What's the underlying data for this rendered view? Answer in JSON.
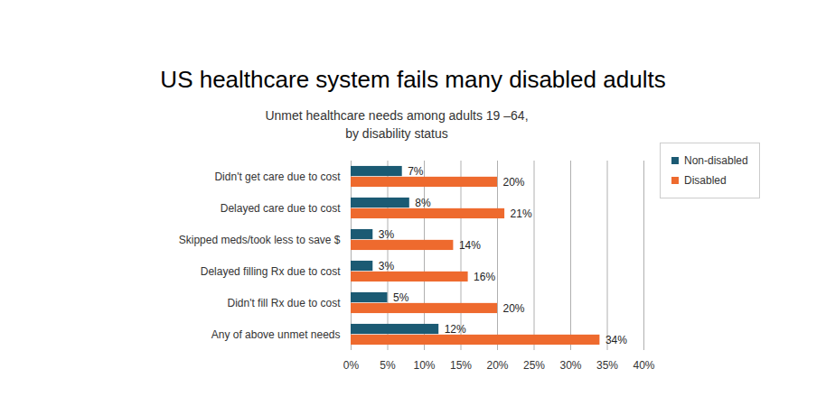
{
  "chart_data": {
    "type": "bar",
    "title": "US healthcare system fails many disabled adults",
    "subtitle": "Unmet healthcare needs among adults 19 –64,\nby disability status",
    "orientation": "horizontal",
    "categories": [
      "Didn't get care due to cost",
      "Delayed care due to cost",
      "Skipped meds/took less to save $",
      "Delayed filling Rx due to cost",
      "Didn't fill Rx due to cost",
      "Any of above unmet needs"
    ],
    "series": [
      {
        "name": "Non-disabled",
        "color": "#1b5a73",
        "values": [
          7,
          8,
          3,
          3,
          5,
          12
        ],
        "value_labels": [
          "7%",
          "8%",
          "3%",
          "3%",
          "5%",
          "12%"
        ]
      },
      {
        "name": "Disabled",
        "color": "#ee6a2e",
        "values": [
          20,
          21,
          14,
          16,
          20,
          34
        ],
        "value_labels": [
          "20%",
          "21%",
          "14%",
          "16%",
          "20%",
          "34%"
        ]
      }
    ],
    "xlim": [
      0,
      40
    ],
    "xticks": [
      {
        "value": 0,
        "label": "0%"
      },
      {
        "value": 5,
        "label": "5%"
      },
      {
        "value": 10,
        "label": "10%"
      },
      {
        "value": 15,
        "label": "15%"
      },
      {
        "value": 20,
        "label": "20%"
      },
      {
        "value": 25,
        "label": "25%"
      },
      {
        "value": 30,
        "label": "30%"
      },
      {
        "value": 35,
        "label": "35%"
      },
      {
        "value": 40,
        "label": "40%"
      }
    ],
    "grid": true,
    "legend": "top-right",
    "data_labels": true
  }
}
